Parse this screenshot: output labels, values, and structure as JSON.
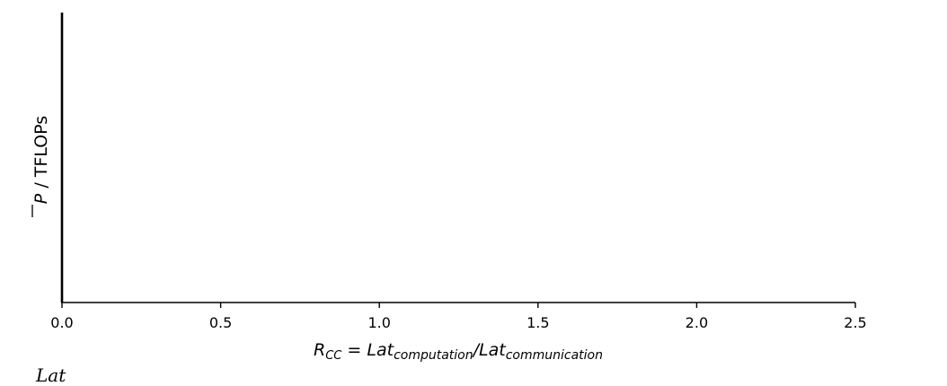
{
  "chart_data": {
    "type": "line",
    "title": "",
    "xlabel": {
      "prefix_var": "R",
      "prefix_sub": "CC",
      "equals": " = ",
      "num_var": "Lat",
      "num_sub": "computation",
      "slash": "/",
      "den_var": "Lat",
      "den_sub": "communication"
    },
    "ylabel": {
      "var": "P",
      "unit": " / TFLOPs"
    },
    "xlim": [
      0.0,
      2.5
    ],
    "x_ticks": [
      "0.0",
      "0.5",
      "1.0",
      "1.5",
      "2.0",
      "2.5"
    ],
    "x_tick_values": [
      0.0,
      0.5,
      1.0,
      1.5,
      2.0,
      2.5
    ],
    "y_ticks": [],
    "series": [],
    "grid": false,
    "legend": "none"
  },
  "footer_fragment": "Lat"
}
